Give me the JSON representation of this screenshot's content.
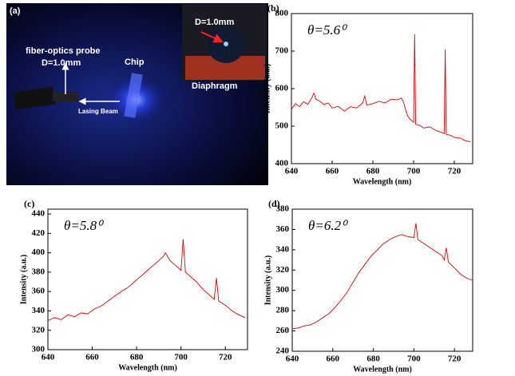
{
  "figure_a": {
    "label": "(a)",
    "probe_label": "fiber-optics probe",
    "probe_diameter": "D=1.0mm",
    "chip_label": "Chip",
    "beam_label": "Lasing Beam",
    "inset_diameter": "D=1.0mm",
    "inset_label": "Diaphragm"
  },
  "chart_data": [
    {
      "type": "line",
      "label": "(b)",
      "annotation": "θ=5.6⁰",
      "x_label": "Wavelength (nm)",
      "y_label": "Intensity (a.u.)",
      "color": "#e00000",
      "x": [
        640,
        642,
        644,
        646,
        648,
        650,
        651,
        652,
        654,
        656,
        658,
        660,
        663,
        666,
        669,
        672,
        675,
        676,
        677,
        680,
        683,
        686,
        689,
        692,
        694,
        695,
        696,
        697,
        698,
        699,
        700,
        700.5,
        701,
        703,
        705,
        708,
        711,
        713,
        715,
        715.5,
        716,
        718,
        720,
        723,
        725,
        728
      ],
      "values": [
        545,
        560,
        552,
        565,
        558,
        575,
        588,
        572,
        566,
        558,
        562,
        548,
        553,
        540,
        552,
        548,
        562,
        580,
        556,
        560,
        566,
        562,
        572,
        570,
        575,
        565,
        545,
        528,
        520,
        515,
        510,
        745,
        505,
        502,
        495,
        498,
        488,
        485,
        480,
        705,
        478,
        476,
        470,
        468,
        462,
        458
      ],
      "xlim": [
        640,
        729
      ],
      "ylim": [
        400,
        800
      ],
      "xticks": [
        640,
        660,
        680,
        700,
        720
      ],
      "yticks": [
        400,
        500,
        600,
        700,
        800
      ]
    },
    {
      "type": "line",
      "label": "(c)",
      "annotation": "θ=5.8⁰",
      "x_label": "Wavelength (nm)",
      "y_label": "Intensity (a.u.)",
      "color": "#e00000",
      "x": [
        640,
        643,
        646,
        649,
        652,
        655,
        658,
        661,
        664,
        667,
        670,
        673,
        676,
        679,
        682,
        685,
        688,
        690,
        692,
        693,
        695,
        697,
        699,
        700,
        701,
        702,
        704,
        707,
        710,
        713,
        715,
        716,
        717,
        720,
        723,
        726,
        729
      ],
      "values": [
        330,
        333,
        331,
        336,
        334,
        338,
        337,
        342,
        345,
        350,
        355,
        360,
        364,
        370,
        376,
        382,
        388,
        392,
        396,
        400,
        392,
        388,
        384,
        382,
        414,
        380,
        376,
        370,
        362,
        356,
        352,
        374,
        350,
        346,
        340,
        336,
        333
      ],
      "xlim": [
        640,
        730
      ],
      "ylim": [
        300,
        445
      ],
      "xticks": [
        640,
        660,
        680,
        700,
        720
      ],
      "yticks": [
        300,
        320,
        340,
        360,
        380,
        400,
        420,
        440
      ]
    },
    {
      "type": "line",
      "label": "(d)",
      "annotation": "θ=6.2⁰",
      "x_label": "Wavelength (nm)",
      "y_label": "Intensity (a.u.)",
      "color": "#e00000",
      "x": [
        640,
        643,
        646,
        649,
        652,
        655,
        658,
        661,
        664,
        667,
        670,
        673,
        676,
        679,
        682,
        685,
        688,
        691,
        694,
        697,
        700,
        701,
        702,
        705,
        708,
        711,
        714,
        715,
        716,
        717,
        720,
        723,
        726,
        729
      ],
      "values": [
        262,
        263,
        265,
        266,
        269,
        273,
        277,
        283,
        290,
        298,
        308,
        318,
        326,
        334,
        340,
        346,
        350,
        353,
        355,
        353,
        352,
        366,
        350,
        346,
        342,
        338,
        334,
        330,
        342,
        328,
        322,
        316,
        312,
        310
      ],
      "xlim": [
        640,
        729
      ],
      "ylim": [
        240,
        380
      ],
      "xticks": [
        640,
        660,
        680,
        700,
        720
      ],
      "yticks": [
        240,
        260,
        280,
        300,
        320,
        340,
        360,
        380
      ]
    }
  ]
}
